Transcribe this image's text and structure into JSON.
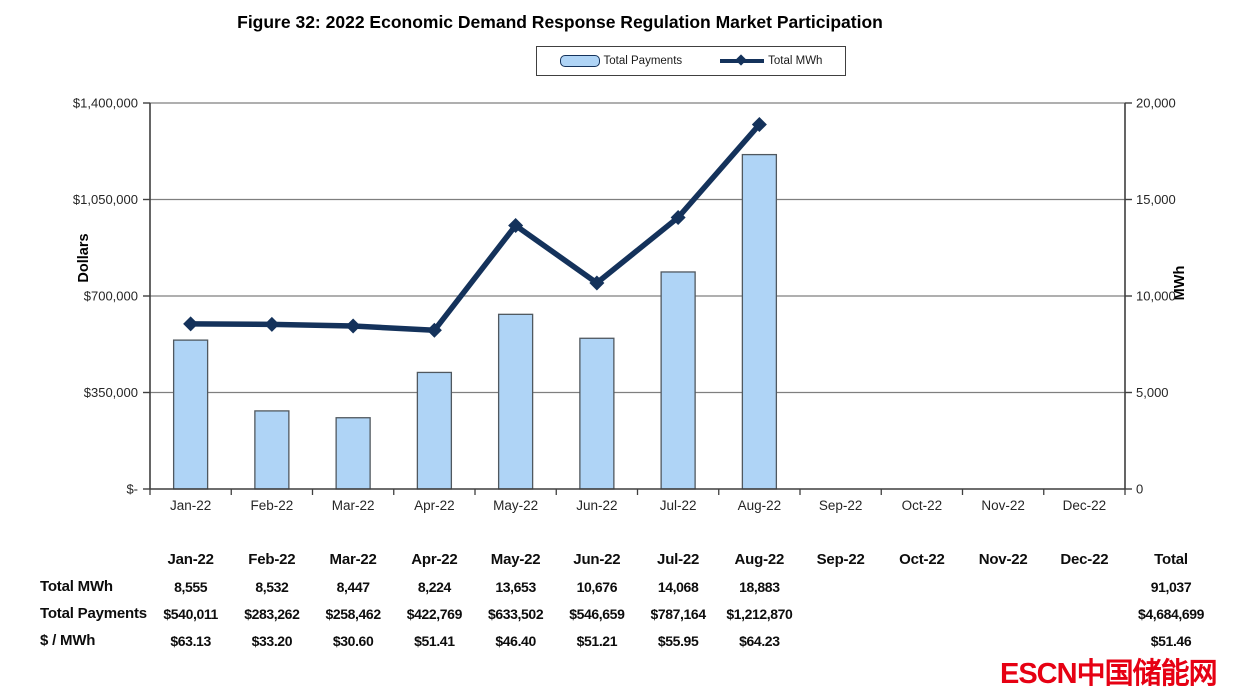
{
  "title": "Figure 32:  2022 Economic Demand Response Regulation Market Participation",
  "legend": {
    "payments_label": "Total Payments",
    "mwh_label": "Total MWh"
  },
  "chart_data": {
    "type": "combo",
    "categories": [
      "Jan-22",
      "Feb-22",
      "Mar-22",
      "Apr-22",
      "May-22",
      "Jun-22",
      "Jul-22",
      "Aug-22",
      "Sep-22",
      "Oct-22",
      "Nov-22",
      "Dec-22"
    ],
    "series": [
      {
        "name": "Total Payments",
        "type": "bar",
        "axis": "left",
        "values": [
          540011,
          283262,
          258462,
          422769,
          633502,
          546659,
          787164,
          1212870,
          null,
          null,
          null,
          null
        ]
      },
      {
        "name": "Total MWh",
        "type": "line",
        "axis": "right",
        "values": [
          8555,
          8532,
          8447,
          8224,
          13653,
          10676,
          14068,
          18883,
          null,
          null,
          null,
          null
        ]
      }
    ],
    "title": "Figure 32:  2022 Economic Demand Response Regulation Market Participation",
    "xlabel": "",
    "ylabel_left": "Dollars",
    "ylabel_right": "MWh",
    "ylim_left": [
      0,
      1400000
    ],
    "ylim_right": [
      0,
      20000
    ],
    "left_tick_labels": [
      "$-",
      "$350,000",
      "$700,000",
      "$1,050,000",
      "$1,400,000"
    ],
    "right_tick_labels": [
      "0",
      "5,000",
      "10,000",
      "15,000",
      "20,000"
    ],
    "grid": true,
    "legend_position": "top"
  },
  "table": {
    "corner_label": "",
    "columns": [
      "Jan-22",
      "Feb-22",
      "Mar-22",
      "Apr-22",
      "May-22",
      "Jun-22",
      "Jul-22",
      "Aug-22",
      "Sep-22",
      "Oct-22",
      "Nov-22",
      "Dec-22",
      "Total"
    ],
    "rows": [
      {
        "label": "Total MWh",
        "values": [
          "8,555",
          "8,532",
          "8,447",
          "8,224",
          "13,653",
          "10,676",
          "14,068",
          "18,883",
          "",
          "",
          "",
          "",
          "91,037"
        ]
      },
      {
        "label": "Total Payments",
        "values": [
          "$540,011",
          "$283,262",
          "$258,462",
          "$422,769",
          "$633,502",
          "$546,659",
          "$787,164",
          "$1,212,870",
          "",
          "",
          "",
          "",
          "$4,684,699"
        ]
      },
      {
        "label": "$ / MWh",
        "values": [
          "$63.13",
          "$33.20",
          "$30.60",
          "$51.41",
          "$46.40",
          "$51.21",
          "$55.95",
          "$64.23",
          "",
          "",
          "",
          "",
          "$51.46"
        ]
      }
    ]
  },
  "watermark": "ESCN中国储能网",
  "colors": {
    "bar_fill": "#AFD4F6",
    "bar_border": "#50585F",
    "line": "#14325B",
    "grid": "#7F7F7F",
    "axis": "#3F3F3F",
    "tick_text": "#262626",
    "watermark": "#E60113"
  }
}
